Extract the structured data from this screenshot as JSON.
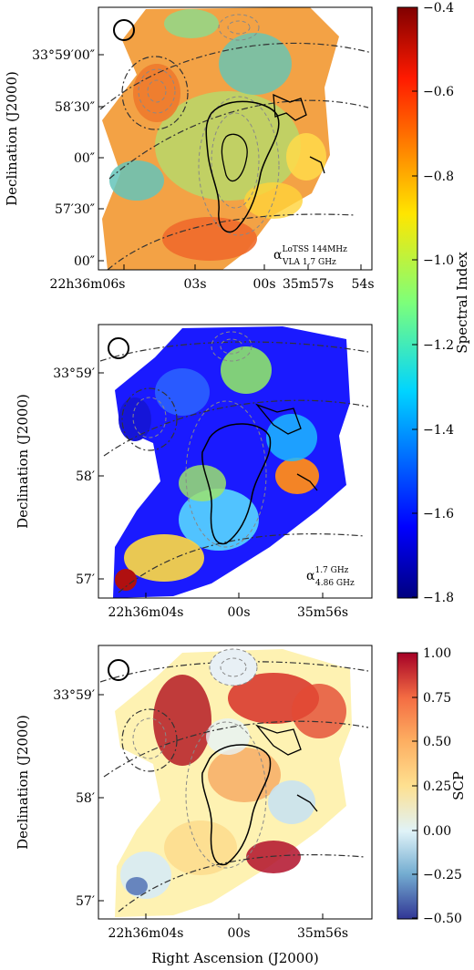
{
  "panels": [
    {
      "id": "top",
      "ylabel": "Declination (J2000)",
      "yticks": [
        "33°59′00″",
        "58′30″",
        "00″",
        "57′30″",
        "00″"
      ],
      "xticks": [
        "22h36m06s",
        "03s",
        "00s",
        "35m57s",
        "54s"
      ],
      "annotation_main": "α",
      "annotation_sup": "LoTSS 144MHz",
      "annotation_sub": "VLA 1.7 GHz"
    },
    {
      "id": "middle",
      "ylabel": "Declination (J2000)",
      "yticks": [
        "33°59′",
        "58′",
        "57′"
      ],
      "xticks": [
        "22h36m04s",
        "00s",
        "35m56s"
      ],
      "annotation_main": "α",
      "annotation_sup": "1.7 GHz",
      "annotation_sub": "4.86 GHz"
    },
    {
      "id": "bottom",
      "ylabel": "Declination (J2000)",
      "yticks": [
        "33°59′",
        "58′",
        "57′"
      ],
      "xticks": [
        "22h36m04s",
        "00s",
        "35m56s"
      ],
      "xlabel": "Right Ascension (J2000)"
    }
  ],
  "colorbars": [
    {
      "label": "Spectral Index",
      "colormap": "jet",
      "range": [
        -1.8,
        -0.4
      ],
      "ticks": [
        "−0.4",
        "−0.6",
        "−0.8",
        "−1.0",
        "−1.2",
        "−1.4",
        "−1.6",
        "−1.8"
      ]
    },
    {
      "label": "SCP",
      "colormap": "RdYlBu_r",
      "range": [
        -0.5,
        1.0
      ],
      "ticks": [
        "1.00",
        "0.75",
        "0.50",
        "0.25",
        "0.00",
        "−0.25",
        "−0.50"
      ]
    }
  ]
}
